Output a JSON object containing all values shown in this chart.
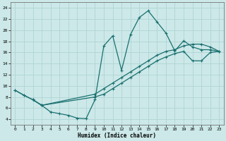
{
  "xlabel": "Humidex (Indice chaleur)",
  "bg_color": "#cce8e8",
  "grid_color": "#b0d4d4",
  "line_color": "#1a7070",
  "xlim": [
    -0.5,
    23.5
  ],
  "ylim": [
    3,
    25
  ],
  "xticks": [
    0,
    1,
    2,
    3,
    4,
    5,
    6,
    7,
    8,
    9,
    10,
    11,
    12,
    13,
    14,
    15,
    16,
    17,
    18,
    19,
    20,
    21,
    22,
    23
  ],
  "yticks": [
    4,
    6,
    8,
    10,
    12,
    14,
    16,
    18,
    20,
    22,
    24
  ],
  "curve1_x": [
    0,
    1,
    2,
    3,
    4,
    5,
    6,
    7,
    8,
    9,
    10,
    11,
    12,
    13,
    14,
    15,
    16,
    17,
    18,
    19,
    20,
    21,
    22,
    23
  ],
  "curve1_y": [
    9.2,
    8.3,
    7.5,
    6.5,
    5.3,
    5.0,
    4.7,
    4.2,
    4.1,
    7.5,
    17.2,
    19.0,
    12.8,
    19.2,
    22.3,
    23.5,
    21.5,
    19.5,
    16.3,
    18.1,
    17.0,
    16.5,
    16.5,
    16.2
  ],
  "curve2_x": [
    0,
    1,
    2,
    3,
    9,
    10,
    11,
    12,
    13,
    14,
    15,
    16,
    17,
    18,
    19,
    20,
    21,
    22,
    23
  ],
  "curve2_y": [
    9.2,
    8.3,
    7.5,
    6.5,
    8.5,
    9.5,
    10.5,
    11.5,
    12.5,
    13.5,
    14.5,
    15.5,
    16.2,
    16.5,
    17.2,
    17.5,
    17.5,
    17.0,
    16.2
  ],
  "curve3_x": [
    2,
    3,
    9,
    10,
    11,
    12,
    13,
    14,
    15,
    16,
    17,
    18,
    19,
    20,
    21,
    22,
    23
  ],
  "curve3_y": [
    7.5,
    6.5,
    8.0,
    8.5,
    9.5,
    10.5,
    11.5,
    12.5,
    13.5,
    14.5,
    15.2,
    15.8,
    16.2,
    14.5,
    14.5,
    16.0,
    16.2
  ]
}
